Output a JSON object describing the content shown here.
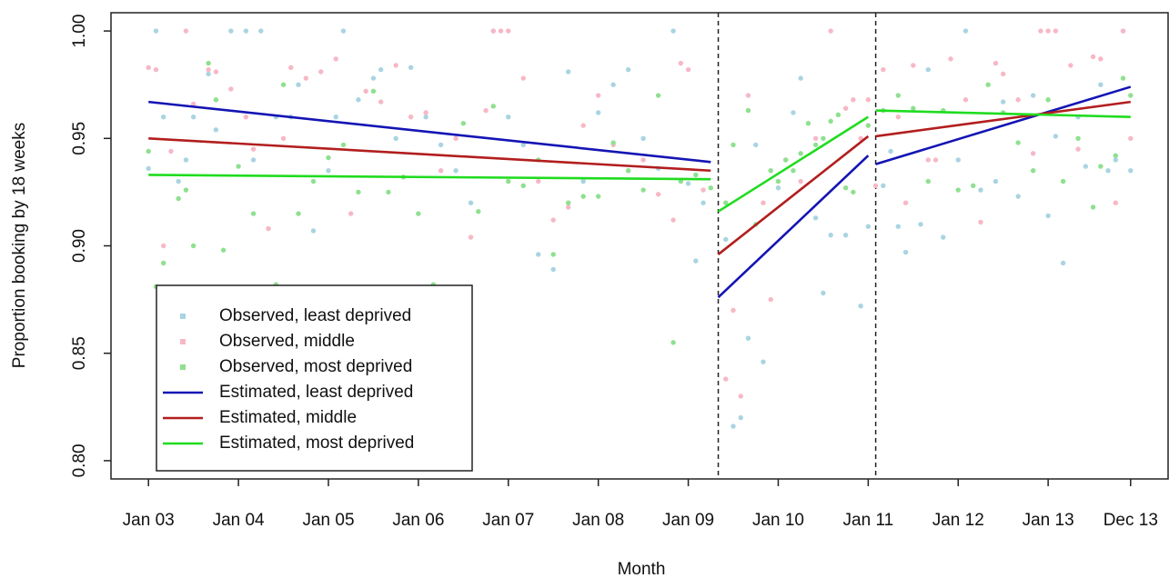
{
  "chart_data": {
    "type": "scatter",
    "xlabel": "Month",
    "ylabel": "Proportion booking by 18 weeks",
    "xlim": [
      -5,
      136
    ],
    "ylim": [
      0.7915,
      1.0085
    ],
    "xticks": [
      {
        "value": 0,
        "label": "Jan 03"
      },
      {
        "value": 12,
        "label": "Jan 04"
      },
      {
        "value": 24,
        "label": "Jan 05"
      },
      {
        "value": 36,
        "label": "Jan 06"
      },
      {
        "value": 48,
        "label": "Jan 07"
      },
      {
        "value": 60,
        "label": "Jan 08"
      },
      {
        "value": 72,
        "label": "Jan 09"
      },
      {
        "value": 84,
        "label": "Jan 10"
      },
      {
        "value": 96,
        "label": "Jan 11"
      },
      {
        "value": 108,
        "label": "Jan 12"
      },
      {
        "value": 120,
        "label": "Jan 13"
      },
      {
        "value": 131,
        "label": "Dec 13"
      }
    ],
    "yticks": [
      {
        "value": 0.8,
        "label": "0.80"
      },
      {
        "value": 0.85,
        "label": "0.85"
      },
      {
        "value": 0.9,
        "label": "0.90"
      },
      {
        "value": 0.95,
        "label": "0.95"
      },
      {
        "value": 1.0,
        "label": "1.00"
      }
    ],
    "vlines": [
      76,
      97
    ],
    "legend": "bottom-left",
    "series": [
      {
        "name": "Observed, least deprived",
        "type": "scatter",
        "color": "#a9d4e2",
        "x": [
          0,
          1,
          2,
          4,
          5,
          6,
          8,
          9,
          11,
          13,
          14,
          15,
          17,
          19,
          20,
          22,
          24,
          25,
          26,
          28,
          30,
          31,
          33,
          35,
          37,
          39,
          41,
          43,
          46,
          48,
          50,
          52,
          54,
          56,
          58,
          60,
          62,
          64,
          66,
          68,
          70,
          72,
          73,
          74,
          77,
          78,
          79,
          80,
          81,
          82,
          84,
          86,
          87,
          89,
          90,
          91,
          93,
          95,
          96,
          98,
          99,
          100,
          101,
          103,
          104,
          106,
          108,
          109,
          111,
          113,
          114,
          116,
          118,
          120,
          121,
          122,
          124,
          125,
          127,
          128,
          129,
          130,
          131
        ],
        "values": [
          0.936,
          1.0,
          0.96,
          0.93,
          0.94,
          0.96,
          0.98,
          0.954,
          1.0,
          1.0,
          0.94,
          1.0,
          0.96,
          0.96,
          0.975,
          0.907,
          0.935,
          0.96,
          1.0,
          0.968,
          0.978,
          0.982,
          0.95,
          0.983,
          0.96,
          0.947,
          0.935,
          0.92,
          1.0,
          0.96,
          0.947,
          0.896,
          0.889,
          0.981,
          0.93,
          0.962,
          0.975,
          0.982,
          0.95,
          0.936,
          1.0,
          0.929,
          0.893,
          0.92,
          0.903,
          0.816,
          0.82,
          0.857,
          0.947,
          0.846,
          0.927,
          0.962,
          0.978,
          0.913,
          0.878,
          0.905,
          0.905,
          0.872,
          0.909,
          0.928,
          0.944,
          0.909,
          0.897,
          0.91,
          0.982,
          0.904,
          0.94,
          1.0,
          0.926,
          0.93,
          0.967,
          0.923,
          0.97,
          0.914,
          0.951,
          0.892,
          0.96,
          0.937,
          0.975,
          0.935,
          0.94,
          1.0,
          0.935
        ]
      },
      {
        "name": "Observed, middle",
        "type": "scatter",
        "color": "#f7b8c6",
        "x": [
          0,
          1,
          2,
          3,
          5,
          6,
          8,
          9,
          11,
          13,
          14,
          16,
          18,
          19,
          21,
          23,
          25,
          27,
          29,
          31,
          33,
          35,
          37,
          39,
          41,
          43,
          45,
          46,
          47,
          48,
          50,
          52,
          54,
          56,
          58,
          60,
          62,
          64,
          66,
          68,
          70,
          71,
          72,
          74,
          77,
          78,
          79,
          80,
          82,
          83,
          85,
          87,
          89,
          91,
          93,
          94,
          95,
          96,
          97,
          98,
          100,
          101,
          102,
          104,
          105,
          107,
          109,
          111,
          113,
          114,
          116,
          118,
          119,
          120,
          121,
          123,
          124,
          126,
          127,
          129,
          130,
          131
        ],
        "values": [
          0.983,
          0.982,
          0.9,
          0.944,
          1.0,
          0.966,
          0.982,
          0.981,
          0.973,
          0.96,
          0.945,
          0.908,
          0.95,
          0.983,
          0.978,
          0.981,
          0.987,
          0.915,
          0.972,
          0.967,
          0.984,
          0.96,
          0.962,
          0.935,
          0.95,
          0.904,
          0.963,
          1.0,
          1.0,
          1.0,
          0.978,
          0.93,
          0.912,
          0.918,
          0.956,
          0.97,
          0.947,
          0.935,
          0.94,
          0.924,
          0.912,
          0.985,
          0.982,
          0.926,
          0.838,
          0.87,
          0.83,
          0.97,
          0.92,
          0.875,
          0.94,
          0.93,
          0.95,
          1.0,
          0.964,
          0.968,
          0.95,
          0.968,
          0.928,
          0.982,
          0.96,
          0.92,
          0.984,
          0.94,
          0.94,
          0.987,
          0.968,
          0.911,
          0.985,
          0.98,
          0.968,
          0.943,
          1.0,
          1.0,
          1.0,
          0.984,
          0.945,
          0.988,
          0.987,
          0.92,
          1.0,
          0.95
        ]
      },
      {
        "name": "Observed, most deprived",
        "type": "scatter",
        "color": "#8fe08f",
        "x": [
          0,
          1,
          2,
          4,
          5,
          6,
          8,
          9,
          10,
          12,
          14,
          16,
          17,
          18,
          20,
          22,
          24,
          26,
          28,
          30,
          32,
          34,
          36,
          38,
          40,
          42,
          44,
          46,
          48,
          50,
          52,
          54,
          56,
          58,
          60,
          62,
          64,
          66,
          68,
          70,
          71,
          73,
          75,
          77,
          78,
          80,
          81,
          83,
          84,
          85,
          86,
          87,
          88,
          89,
          90,
          91,
          92,
          93,
          94,
          96,
          98,
          100,
          102,
          104,
          106,
          108,
          110,
          112,
          114,
          116,
          118,
          120,
          122,
          124,
          126,
          127,
          129,
          130,
          131
        ],
        "values": [
          0.944,
          0.881,
          0.892,
          0.922,
          0.926,
          0.9,
          0.985,
          0.968,
          0.898,
          0.937,
          0.915,
          0.88,
          0.882,
          0.975,
          0.915,
          0.93,
          0.941,
          0.947,
          0.925,
          0.972,
          0.925,
          0.932,
          0.915,
          0.882,
          0.85,
          0.957,
          0.916,
          0.965,
          0.93,
          0.928,
          0.94,
          0.896,
          0.92,
          0.923,
          0.923,
          0.948,
          0.935,
          0.926,
          0.97,
          0.855,
          0.93,
          0.933,
          0.927,
          0.92,
          0.947,
          0.963,
          0.91,
          0.935,
          0.93,
          0.94,
          0.935,
          0.943,
          0.957,
          0.947,
          0.95,
          0.958,
          0.961,
          0.927,
          0.925,
          0.956,
          0.963,
          0.97,
          0.964,
          0.93,
          0.963,
          0.926,
          0.928,
          0.975,
          0.962,
          0.948,
          0.935,
          0.968,
          0.93,
          0.95,
          0.918,
          0.937,
          0.942,
          0.978,
          0.97
        ]
      },
      {
        "name": "Estimated, least deprived",
        "type": "line",
        "color": "#1414b4",
        "x": [
          0,
          75,
          75.5,
          76,
          96,
          96.5,
          97,
          131
        ],
        "values": [
          0.967,
          0.939,
          null,
          0.876,
          0.942,
          null,
          0.938,
          0.974
        ]
      },
      {
        "name": "Estimated, middle",
        "type": "line",
        "color": "#b21e1e",
        "x": [
          0,
          75,
          75.5,
          76,
          96,
          96.5,
          97,
          131
        ],
        "values": [
          0.95,
          0.935,
          null,
          0.896,
          0.951,
          null,
          0.951,
          0.967
        ]
      },
      {
        "name": "Estimated, most deprived",
        "type": "line",
        "color": "#1fdc1f",
        "x": [
          0,
          75,
          75.5,
          76,
          96,
          96.5,
          97,
          131
        ],
        "values": [
          0.933,
          0.931,
          null,
          0.916,
          0.96,
          null,
          0.963,
          0.96
        ]
      }
    ]
  }
}
